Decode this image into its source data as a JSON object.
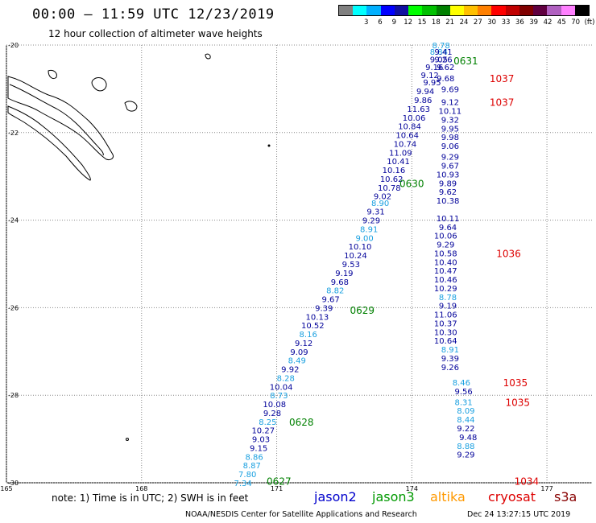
{
  "title": "00:00 – 11:59 UTC 12/23/2019",
  "subtitle": "12 hour collection of altimeter wave heights",
  "colorbar": {
    "colors": [
      "#808080",
      "#00ffff",
      "#00b0ff",
      "#0000ff",
      "#1010a0",
      "#00ff00",
      "#00c000",
      "#008000",
      "#ffff00",
      "#ffc000",
      "#ff8000",
      "#ff0000",
      "#c00000",
      "#800000",
      "#600040",
      "#b060c0",
      "#ff80ff",
      "#000000"
    ],
    "labels": [
      "3",
      "6",
      "9",
      "12",
      "15",
      "18",
      "21",
      "24",
      "27",
      "30",
      "33",
      "36",
      "39",
      "42",
      "45",
      "70",
      "(ft)"
    ]
  },
  "axes": {
    "lon_labels": [
      "165",
      "168",
      "171",
      "174",
      "177"
    ],
    "lat_labels": [
      "-20",
      "-22",
      "-24",
      "-26",
      "-28",
      "-30"
    ]
  },
  "chart_data": {
    "type": "scatter",
    "x_range": [
      165,
      178
    ],
    "y_range": [
      -30,
      -20
    ],
    "units": "ft",
    "passes": [
      {
        "tag": "0631",
        "tag_color": "#008000",
        "tag_pos": [
          175.2,
          -20.35
        ],
        "points": [
          [
            174.65,
            -20.0,
            8.78,
            "#1aa0e0"
          ],
          [
            174.6,
            -20.15,
            8.84,
            "#1aa0e0"
          ],
          [
            174.7,
            -20.15,
            9.41,
            "#000099"
          ],
          [
            174.6,
            -20.32,
            9.05,
            "#000099"
          ],
          [
            174.7,
            -20.32,
            9.26,
            "#000099"
          ],
          [
            174.5,
            -20.5,
            9.16,
            "#000099"
          ],
          [
            174.75,
            -20.5,
            9.62,
            "#000099"
          ],
          [
            174.4,
            -20.68,
            9.12,
            "#000099"
          ],
          [
            174.45,
            -20.85,
            9.95,
            "#000099"
          ]
        ]
      },
      {
        "tag": "1037",
        "tag_color": "#dd0000",
        "tag_pos": [
          176.0,
          -20.75
        ],
        "points": [
          [
            174.75,
            -20.75,
            9.68,
            "#000099"
          ]
        ]
      },
      {
        "tag": "1037",
        "tag_color": "#dd0000",
        "tag_pos": [
          176.0,
          -21.3
        ],
        "points": [
          [
            174.85,
            -21.0,
            9.69,
            "#000099"
          ],
          [
            174.3,
            -21.05,
            9.94,
            "#000099"
          ],
          [
            174.25,
            -21.25,
            9.86,
            "#000099"
          ],
          [
            174.85,
            -21.3,
            9.12,
            "#000099"
          ],
          [
            174.15,
            -21.45,
            11.63,
            "#000099"
          ],
          [
            174.85,
            -21.5,
            10.11,
            "#000099"
          ],
          [
            174.05,
            -21.65,
            10.06,
            "#000099"
          ],
          [
            174.85,
            -21.7,
            9.32,
            "#000099"
          ],
          [
            173.95,
            -21.85,
            10.84,
            "#000099"
          ],
          [
            174.85,
            -21.9,
            9.95,
            "#000099"
          ],
          [
            173.9,
            -22.05,
            10.64,
            "#000099"
          ],
          [
            174.85,
            -22.1,
            9.98,
            "#000099"
          ],
          [
            173.85,
            -22.25,
            10.74,
            "#000099"
          ],
          [
            174.85,
            -22.3,
            9.06,
            "#000099"
          ],
          [
            173.75,
            -22.45,
            11.09,
            "#000099"
          ],
          [
            174.85,
            -22.55,
            9.29,
            "#000099"
          ],
          [
            173.7,
            -22.65,
            10.41,
            "#000099"
          ],
          [
            174.85,
            -22.75,
            9.67,
            "#000099"
          ],
          [
            173.6,
            -22.85,
            10.16,
            "#000099"
          ],
          [
            174.8,
            -22.95,
            10.93,
            "#000099"
          ],
          [
            173.55,
            -23.05,
            10.62,
            "#000099"
          ],
          [
            174.8,
            -23.15,
            9.89,
            "#000099"
          ],
          [
            173.5,
            -23.25,
            10.78,
            "#000099"
          ],
          [
            174.8,
            -23.35,
            9.62,
            "#000099"
          ],
          [
            173.35,
            -23.45,
            9.02,
            "#000099"
          ],
          [
            174.8,
            -23.55,
            10.38,
            "#000099"
          ],
          [
            173.3,
            -23.6,
            8.9,
            "#1aa0e0"
          ],
          [
            173.2,
            -23.8,
            9.31,
            "#000099"
          ],
          [
            174.8,
            -23.95,
            10.11,
            "#000099"
          ],
          [
            173.1,
            -24.0,
            9.29,
            "#000099"
          ],
          [
            174.8,
            -24.15,
            9.64,
            "#000099"
          ],
          [
            173.05,
            -24.2,
            8.91,
            "#1aa0e0"
          ],
          [
            174.75,
            -24.35,
            10.06,
            "#000099"
          ],
          [
            172.95,
            -24.4,
            9.0,
            "#1aa0e0"
          ],
          [
            174.75,
            -24.55,
            9.29,
            "#000099"
          ],
          [
            172.85,
            -24.6,
            10.1,
            "#000099"
          ],
          [
            172.75,
            -24.8,
            10.24,
            "#000099"
          ],
          [
            172.65,
            -25.0,
            9.53,
            "#000099"
          ],
          [
            172.5,
            -25.2,
            9.19,
            "#000099"
          ],
          [
            172.4,
            -25.4,
            9.68,
            "#000099"
          ],
          [
            172.3,
            -25.6,
            8.82,
            "#1aa0e0"
          ],
          [
            172.2,
            -25.8,
            9.67,
            "#000099"
          ]
        ]
      },
      {
        "tag": "0630",
        "tag_color": "#008000",
        "tag_pos": [
          174.0,
          -23.15
        ],
        "points": []
      },
      {
        "tag": "1036",
        "tag_color": "#dd0000",
        "tag_pos": [
          176.15,
          -24.75
        ],
        "points": [
          [
            174.75,
            -24.75,
            10.58,
            "#000099"
          ],
          [
            174.75,
            -24.95,
            10.4,
            "#000099"
          ],
          [
            174.75,
            -25.15,
            10.47,
            "#000099"
          ],
          [
            174.75,
            -25.35,
            10.46,
            "#000099"
          ],
          [
            174.75,
            -25.55,
            10.29,
            "#000099"
          ],
          [
            174.8,
            -25.75,
            8.78,
            "#1aa0e0"
          ],
          [
            174.8,
            -25.95,
            9.19,
            "#000099"
          ],
          [
            174.75,
            -26.15,
            11.06,
            "#000099"
          ],
          [
            174.75,
            -26.35,
            10.37,
            "#000099"
          ],
          [
            174.75,
            -26.55,
            10.3,
            "#000099"
          ],
          [
            174.75,
            -26.75,
            10.64,
            "#000099"
          ],
          [
            174.85,
            -26.95,
            8.91,
            "#1aa0e0"
          ],
          [
            174.85,
            -27.15,
            9.39,
            "#000099"
          ],
          [
            174.85,
            -27.35,
            9.26,
            "#000099"
          ]
        ]
      },
      {
        "tag": "0629",
        "tag_color": "#008000",
        "tag_pos": [
          172.9,
          -26.05
        ],
        "points": [
          [
            172.05,
            -26.0,
            9.39,
            "#000099"
          ],
          [
            171.9,
            -26.2,
            10.13,
            "#000099"
          ],
          [
            171.8,
            -26.4,
            10.52,
            "#000099"
          ],
          [
            171.7,
            -26.6,
            8.16,
            "#1aa0e0"
          ],
          [
            171.6,
            -26.8,
            9.12,
            "#000099"
          ],
          [
            171.5,
            -27.0,
            9.09,
            "#000099"
          ],
          [
            171.45,
            -27.2,
            8.49,
            "#1aa0e0"
          ],
          [
            171.3,
            -27.4,
            9.92,
            "#000099"
          ],
          [
            171.2,
            -27.6,
            8.28,
            "#1aa0e0"
          ],
          [
            171.1,
            -27.8,
            10.04,
            "#000099"
          ],
          [
            171.05,
            -28.0,
            8.73,
            "#1aa0e0"
          ],
          [
            170.95,
            -28.2,
            10.08,
            "#000099"
          ],
          [
            170.9,
            -28.4,
            9.28,
            "#000099"
          ],
          [
            170.8,
            -28.6,
            8.25,
            "#1aa0e0"
          ]
        ]
      },
      {
        "tag": "1035",
        "tag_color": "#dd0000",
        "tag_pos": [
          176.3,
          -27.7
        ],
        "points": [
          [
            175.1,
            -27.7,
            8.46,
            "#1aa0e0"
          ],
          [
            175.15,
            -27.9,
            9.56,
            "#000099"
          ]
        ]
      },
      {
        "tag": "1035",
        "tag_color": "#dd0000",
        "tag_pos": [
          176.35,
          -28.15
        ],
        "points": [
          [
            175.15,
            -28.15,
            8.31,
            "#1aa0e0"
          ],
          [
            175.2,
            -28.35,
            8.09,
            "#1aa0e0"
          ],
          [
            175.2,
            -28.55,
            8.44,
            "#1aa0e0"
          ],
          [
            175.2,
            -28.75,
            9.22,
            "#000099"
          ],
          [
            175.25,
            -28.95,
            9.48,
            "#000099"
          ],
          [
            175.2,
            -29.15,
            8.88,
            "#1aa0e0"
          ],
          [
            175.2,
            -29.35,
            9.29,
            "#000099"
          ]
        ]
      },
      {
        "tag": "0628",
        "tag_color": "#008000",
        "tag_pos": [
          171.55,
          -28.6
        ],
        "points": [
          [
            170.7,
            -28.8,
            10.27,
            "#000099"
          ],
          [
            170.65,
            -29.0,
            9.03,
            "#000099"
          ],
          [
            170.6,
            -29.2,
            9.15,
            "#000099"
          ],
          [
            170.5,
            -29.4,
            8.86,
            "#1aa0e0"
          ],
          [
            170.45,
            -29.6,
            8.87,
            "#1aa0e0"
          ],
          [
            170.35,
            -29.8,
            7.8,
            "#1aa0e0"
          ],
          [
            170.25,
            -30.0,
            7.34,
            "#1aa0e0"
          ]
        ]
      },
      {
        "tag": "0627",
        "tag_color": "#008000",
        "tag_pos": [
          171.05,
          -29.95
        ],
        "points": []
      },
      {
        "tag": "1034",
        "tag_color": "#dd0000",
        "tag_pos": [
          176.55,
          -29.95
        ],
        "points": []
      }
    ]
  },
  "note": "note: 1) Time is in UTC; 2) SWH is in feet",
  "legend": [
    {
      "label": "jason2",
      "color": "#0000cc"
    },
    {
      "label": "jason3",
      "color": "#009900"
    },
    {
      "label": "altika",
      "color": "#ff9900"
    },
    {
      "label": "cryosat",
      "color": "#dd0000"
    },
    {
      "label": "s3a",
      "color": "#880000"
    }
  ],
  "credit": "NOAA/NESDIS Center for Satellite Applications and Research",
  "timestamp": "Dec 24 13:27:15 UTC 2019"
}
